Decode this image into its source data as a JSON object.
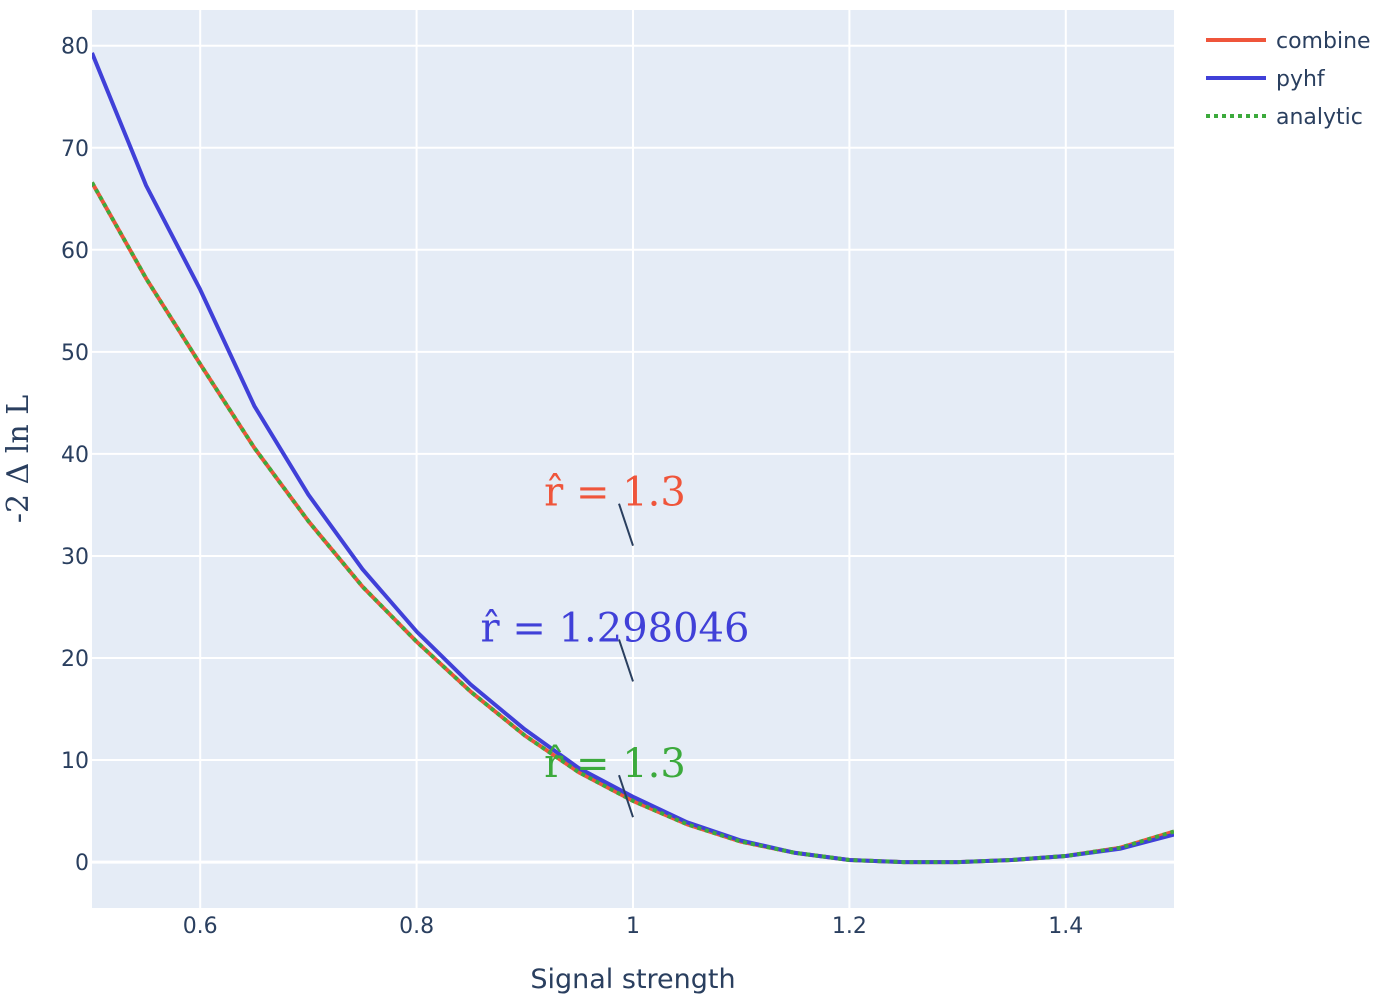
{
  "chart_data": {
    "type": "line",
    "xlabel": "Signal strength",
    "ylabel": "-2 Δ ln L",
    "xlim": [
      0.5,
      1.5
    ],
    "ylim": [
      -4.5,
      83.5
    ],
    "grid": true,
    "legend_position": "top-right",
    "x_ticks": [
      0.6,
      0.8,
      1,
      1.2,
      1.4
    ],
    "x_tick_labels": [
      "0.6",
      "0.8",
      "1",
      "1.2",
      "1.4"
    ],
    "y_ticks": [
      0,
      10,
      20,
      30,
      40,
      50,
      60,
      70,
      80
    ],
    "y_tick_labels": [
      "0",
      "10",
      "20",
      "30",
      "40",
      "50",
      "60",
      "70",
      "80"
    ],
    "x": [
      0.5,
      0.55,
      0.6,
      0.65,
      0.7,
      0.75,
      0.8,
      0.85,
      0.9,
      0.95,
      1.0,
      1.05,
      1.1,
      1.15,
      1.2,
      1.25,
      1.3,
      1.35,
      1.4,
      1.45,
      1.5
    ],
    "series": [
      {
        "name": "combine",
        "color": "#ef553b",
        "style": "solid",
        "values": [
          66.6,
          57.2,
          48.8,
          40.6,
          33.4,
          27.0,
          21.6,
          16.7,
          12.4,
          8.8,
          6.0,
          3.7,
          2.0,
          0.9,
          0.2,
          0.0,
          0.0,
          0.2,
          0.6,
          1.4,
          3.0
        ]
      },
      {
        "name": "pyhf",
        "color": "#4040d8",
        "style": "solid",
        "values": [
          79.3,
          66.3,
          56.1,
          44.7,
          36.0,
          28.7,
          22.6,
          17.4,
          13.0,
          9.2,
          6.4,
          3.9,
          2.1,
          0.9,
          0.2,
          0.0,
          0.0,
          0.2,
          0.6,
          1.3,
          2.7
        ]
      },
      {
        "name": "analytic",
        "color": "#3caa3c",
        "style": "dotted",
        "values": [
          66.6,
          57.2,
          48.8,
          40.6,
          33.4,
          27.0,
          21.6,
          16.7,
          12.4,
          8.8,
          6.0,
          3.7,
          2.0,
          0.9,
          0.2,
          0.0,
          0.0,
          0.2,
          0.6,
          1.4,
          3.0
        ]
      }
    ],
    "annotations": [
      {
        "text": "r̂ = 1.3",
        "color": "#ef553b",
        "x": 1.0,
        "y": 31
      },
      {
        "text": "r̂ = 1.298046",
        "color": "#4040d8",
        "x": 1.0,
        "y": 17.7
      },
      {
        "text": "r̂ = 1.3",
        "color": "#3caa3c",
        "x": 1.0,
        "y": 4.4
      }
    ],
    "colors": {
      "plot_background": "#e5ecf6",
      "grid": "#ffffff",
      "text": "#2a3f5f"
    }
  }
}
